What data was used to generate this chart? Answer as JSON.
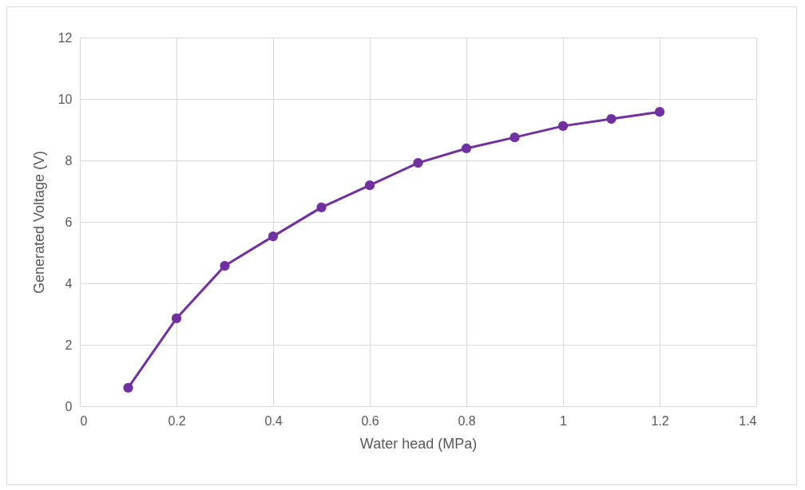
{
  "chart_data": {
    "type": "line",
    "xlabel": "Water head (MPa)",
    "ylabel": "Generated Voltage (V)",
    "x": [
      0.1,
      0.2,
      0.3,
      0.4,
      0.5,
      0.6,
      0.7,
      0.8,
      0.9,
      1.0,
      1.1,
      1.2
    ],
    "series": [
      {
        "color": "#7030a0",
        "values": [
          0.6,
          2.86,
          4.57,
          5.53,
          6.47,
          7.19,
          7.92,
          8.39,
          8.75,
          9.12,
          9.35,
          9.58
        ]
      }
    ],
    "xlim": [
      0,
      1.4
    ],
    "xticks": [
      0,
      0.2,
      0.4,
      0.6,
      0.8,
      1,
      1.2,
      1.4
    ],
    "ylim": [
      0,
      12
    ],
    "yticks": [
      0,
      2,
      4,
      6,
      8,
      10,
      12
    ],
    "grid": true,
    "marker": "circle",
    "line_style": "solid"
  }
}
